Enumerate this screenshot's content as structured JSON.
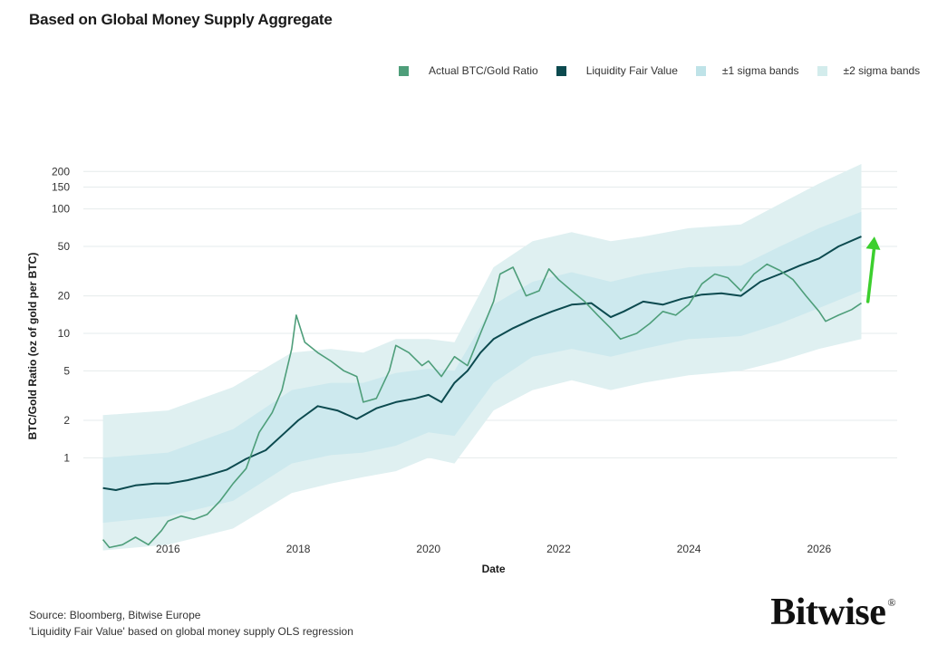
{
  "chart_data": {
    "type": "line",
    "title": "Based on Global Money Supply Aggregate",
    "xlabel": "Date",
    "ylabel": "BTC/Gold Ratio (oz of gold per BTC)",
    "y_scale": "log",
    "ylim": [
      0.25,
      250
    ],
    "xlim": [
      2014.7,
      2027.2
    ],
    "grid": true,
    "legend_position": "top-right",
    "x_ticks": [
      2016,
      2018,
      2020,
      2022,
      2024,
      2026
    ],
    "x_tick_labels": [
      "2016",
      "2018",
      "2020",
      "2022",
      "2024",
      "2026"
    ],
    "y_ticks": [
      1,
      2,
      5,
      10,
      20,
      50,
      100,
      150,
      200
    ],
    "y_tick_labels": [
      "1",
      "2",
      "5",
      "10",
      "20",
      "50",
      "100",
      "150",
      "200"
    ],
    "legend": [
      "Actual BTC/Gold Ratio",
      "Liquidity Fair Value",
      "±1 sigma bands",
      "±2 sigma bands"
    ],
    "colors": {
      "actual": "#4e9e7a",
      "fair": "#0c4a4f",
      "sigma1": "#cde9ee",
      "sigma2": "#dff0f1",
      "arrow": "#3ccf2e"
    },
    "series": [
      {
        "name": "Actual BTC/Gold Ratio",
        "x": [
          2015.0,
          2015.1,
          2015.3,
          2015.5,
          2015.7,
          2015.9,
          2016.0,
          2016.2,
          2016.4,
          2016.6,
          2016.8,
          2017.0,
          2017.2,
          2017.4,
          2017.6,
          2017.75,
          2017.9,
          2017.97,
          2018.1,
          2018.3,
          2018.5,
          2018.7,
          2018.9,
          2019.0,
          2019.2,
          2019.4,
          2019.5,
          2019.7,
          2019.9,
          2020.0,
          2020.2,
          2020.4,
          2020.6,
          2020.8,
          2021.0,
          2021.1,
          2021.3,
          2021.5,
          2021.7,
          2021.85,
          2022.0,
          2022.2,
          2022.4,
          2022.6,
          2022.8,
          2022.95,
          2023.2,
          2023.4,
          2023.6,
          2023.8,
          2024.0,
          2024.2,
          2024.4,
          2024.6,
          2024.8,
          2025.0,
          2025.2,
          2025.4,
          2025.6,
          2025.8,
          2026.0,
          2026.1,
          2026.3,
          2026.5,
          2026.65
        ],
        "y": [
          0.22,
          0.19,
          0.2,
          0.23,
          0.2,
          0.26,
          0.31,
          0.34,
          0.32,
          0.35,
          0.45,
          0.62,
          0.82,
          1.6,
          2.3,
          3.5,
          7.5,
          14.0,
          8.5,
          7.0,
          6.0,
          5.0,
          4.5,
          2.8,
          3.0,
          5.0,
          8.0,
          7.0,
          5.5,
          6.0,
          4.5,
          6.5,
          5.5,
          10.0,
          18.0,
          30.0,
          34.0,
          20.0,
          22.0,
          33.0,
          27.0,
          22.0,
          18.0,
          14.0,
          11.0,
          9.0,
          10.0,
          12.0,
          15.0,
          14.0,
          17.0,
          25.0,
          30.0,
          28.0,
          22.0,
          30.0,
          36.0,
          32.0,
          27.0,
          20.0,
          15.0,
          12.5,
          14.0,
          15.5,
          17.5
        ]
      },
      {
        "name": "Liquidity Fair Value",
        "x": [
          2015.0,
          2015.2,
          2015.5,
          2015.8,
          2016.0,
          2016.3,
          2016.6,
          2016.9,
          2017.2,
          2017.5,
          2017.8,
          2018.0,
          2018.3,
          2018.6,
          2018.9,
          2019.2,
          2019.5,
          2019.8,
          2020.0,
          2020.2,
          2020.4,
          2020.6,
          2020.8,
          2021.0,
          2021.3,
          2021.6,
          2021.9,
          2022.2,
          2022.5,
          2022.8,
          2023.0,
          2023.3,
          2023.6,
          2023.9,
          2024.2,
          2024.5,
          2024.8,
          2025.1,
          2025.4,
          2025.7,
          2026.0,
          2026.3,
          2026.65
        ],
        "y": [
          0.57,
          0.55,
          0.6,
          0.62,
          0.62,
          0.66,
          0.72,
          0.8,
          0.98,
          1.15,
          1.6,
          2.0,
          2.6,
          2.4,
          2.05,
          2.5,
          2.8,
          3.0,
          3.2,
          2.8,
          4.0,
          5.0,
          7.0,
          9.0,
          11.0,
          13.0,
          15.0,
          17.0,
          17.5,
          13.5,
          15.0,
          18.0,
          17.0,
          19.0,
          20.5,
          21.0,
          20.0,
          26.0,
          30.0,
          35.0,
          40.0,
          50.0,
          60.0
        ]
      }
    ],
    "bands": {
      "x": [
        2015.0,
        2016.0,
        2017.0,
        2017.9,
        2018.5,
        2019.0,
        2019.5,
        2020.0,
        2020.4,
        2021.0,
        2021.6,
        2022.2,
        2022.8,
        2023.3,
        2024.0,
        2024.8,
        2025.4,
        2026.0,
        2026.65
      ],
      "sigma2_low": [
        0.18,
        0.2,
        0.27,
        0.52,
        0.62,
        0.7,
        0.78,
        1.0,
        0.9,
        2.4,
        3.5,
        4.2,
        3.5,
        4.0,
        4.6,
        5.0,
        6.0,
        7.5,
        9.0
      ],
      "sigma1_low": [
        0.3,
        0.34,
        0.45,
        0.9,
        1.05,
        1.1,
        1.25,
        1.6,
        1.5,
        4.0,
        6.5,
        7.5,
        6.5,
        7.5,
        9.0,
        9.5,
        12.0,
        16.0,
        22.0
      ],
      "sigma1_high": [
        1.0,
        1.1,
        1.7,
        3.5,
        4.0,
        4.0,
        4.8,
        5.2,
        5.0,
        17.0,
        26.0,
        31.0,
        26.0,
        30.0,
        34.0,
        35.0,
        50.0,
        70.0,
        95.0
      ],
      "sigma2_high": [
        2.2,
        2.4,
        3.7,
        7.0,
        7.5,
        7.0,
        9.0,
        9.0,
        8.5,
        34.0,
        55.0,
        65.0,
        55.0,
        60.0,
        70.0,
        75.0,
        110.0,
        160.0,
        230.0
      ]
    },
    "annotations": [
      {
        "type": "arrow",
        "color": "green",
        "from": [
          2026.75,
          18.0
        ],
        "to": [
          2026.85,
          60.0
        ]
      }
    ]
  },
  "footer": {
    "source": "Source: Bloomberg, Bitwise Europe",
    "note": "'Liquidity Fair Value' based on global money supply OLS regression"
  },
  "logo": {
    "text": "Bitwise",
    "mark": "®"
  }
}
